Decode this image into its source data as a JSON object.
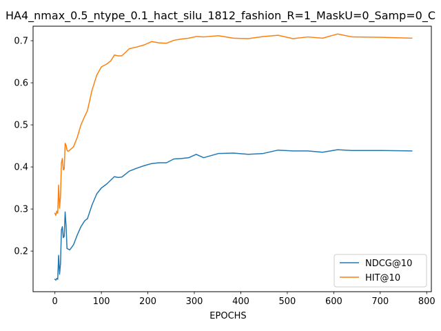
{
  "chart_data": {
    "type": "line",
    "title": "HA4_nmax_0.5_ntype_0.1_hact_silu_1812_fashion_R=1_MaskU=0_Samp=0_C",
    "xlabel": "EPOCHS",
    "ylabel": "",
    "xlim": [
      -47,
      810
    ],
    "ylim": [
      0.1035,
      0.7345
    ],
    "xticks": [
      0,
      100,
      200,
      300,
      400,
      500,
      600,
      700,
      800
    ],
    "yticks": [
      0.2,
      0.3,
      0.4,
      0.5,
      0.6,
      0.7
    ],
    "ytick_labels": [
      "0.2",
      "0.3",
      "0.4",
      "0.5",
      "0.6",
      "0.7"
    ],
    "grid": false,
    "legend_position": "lower-right",
    "series": [
      {
        "name": "NDCG@10",
        "color": "#1f77b4",
        "x": [
          0,
          2,
          4,
          6,
          8,
          10,
          12,
          14,
          16,
          18,
          20,
          22,
          24,
          26,
          28,
          32,
          40,
          48,
          56,
          64,
          70,
          80,
          90,
          100,
          112,
          128,
          136,
          144,
          160,
          176,
          192,
          208,
          224,
          240,
          256,
          272,
          288,
          304,
          320,
          352,
          384,
          416,
          448,
          480,
          512,
          544,
          576,
          608,
          640,
          704,
          768
        ],
        "y": [
          0.133,
          0.131,
          0.135,
          0.133,
          0.19,
          0.145,
          0.17,
          0.25,
          0.258,
          0.232,
          0.235,
          0.293,
          0.26,
          0.206,
          0.205,
          0.203,
          0.215,
          0.238,
          0.258,
          0.272,
          0.277,
          0.31,
          0.336,
          0.35,
          0.36,
          0.377,
          0.375,
          0.376,
          0.39,
          0.397,
          0.403,
          0.408,
          0.41,
          0.41,
          0.419,
          0.42,
          0.422,
          0.43,
          0.422,
          0.432,
          0.433,
          0.43,
          0.432,
          0.44,
          0.438,
          0.438,
          0.435,
          0.441,
          0.439,
          0.439,
          0.438
        ]
      },
      {
        "name": "HIT@10",
        "color": "#ff7f0e",
        "x": [
          0,
          2,
          4,
          6,
          8,
          10,
          12,
          14,
          16,
          18,
          20,
          22,
          24,
          26,
          28,
          32,
          40,
          48,
          56,
          64,
          70,
          80,
          90,
          100,
          112,
          120,
          128,
          136,
          144,
          160,
          176,
          192,
          208,
          224,
          240,
          256,
          272,
          288,
          304,
          320,
          352,
          384,
          416,
          448,
          480,
          512,
          544,
          576,
          608,
          640,
          704,
          768
        ],
        "y": [
          0.29,
          0.285,
          0.295,
          0.29,
          0.357,
          0.302,
          0.33,
          0.41,
          0.42,
          0.393,
          0.395,
          0.456,
          0.452,
          0.44,
          0.437,
          0.44,
          0.448,
          0.47,
          0.5,
          0.52,
          0.534,
          0.583,
          0.618,
          0.638,
          0.645,
          0.652,
          0.666,
          0.664,
          0.664,
          0.681,
          0.685,
          0.69,
          0.698,
          0.695,
          0.694,
          0.701,
          0.704,
          0.706,
          0.71,
          0.709,
          0.712,
          0.706,
          0.705,
          0.71,
          0.713,
          0.705,
          0.709,
          0.706,
          0.716,
          0.709,
          0.708,
          0.706
        ]
      }
    ]
  }
}
